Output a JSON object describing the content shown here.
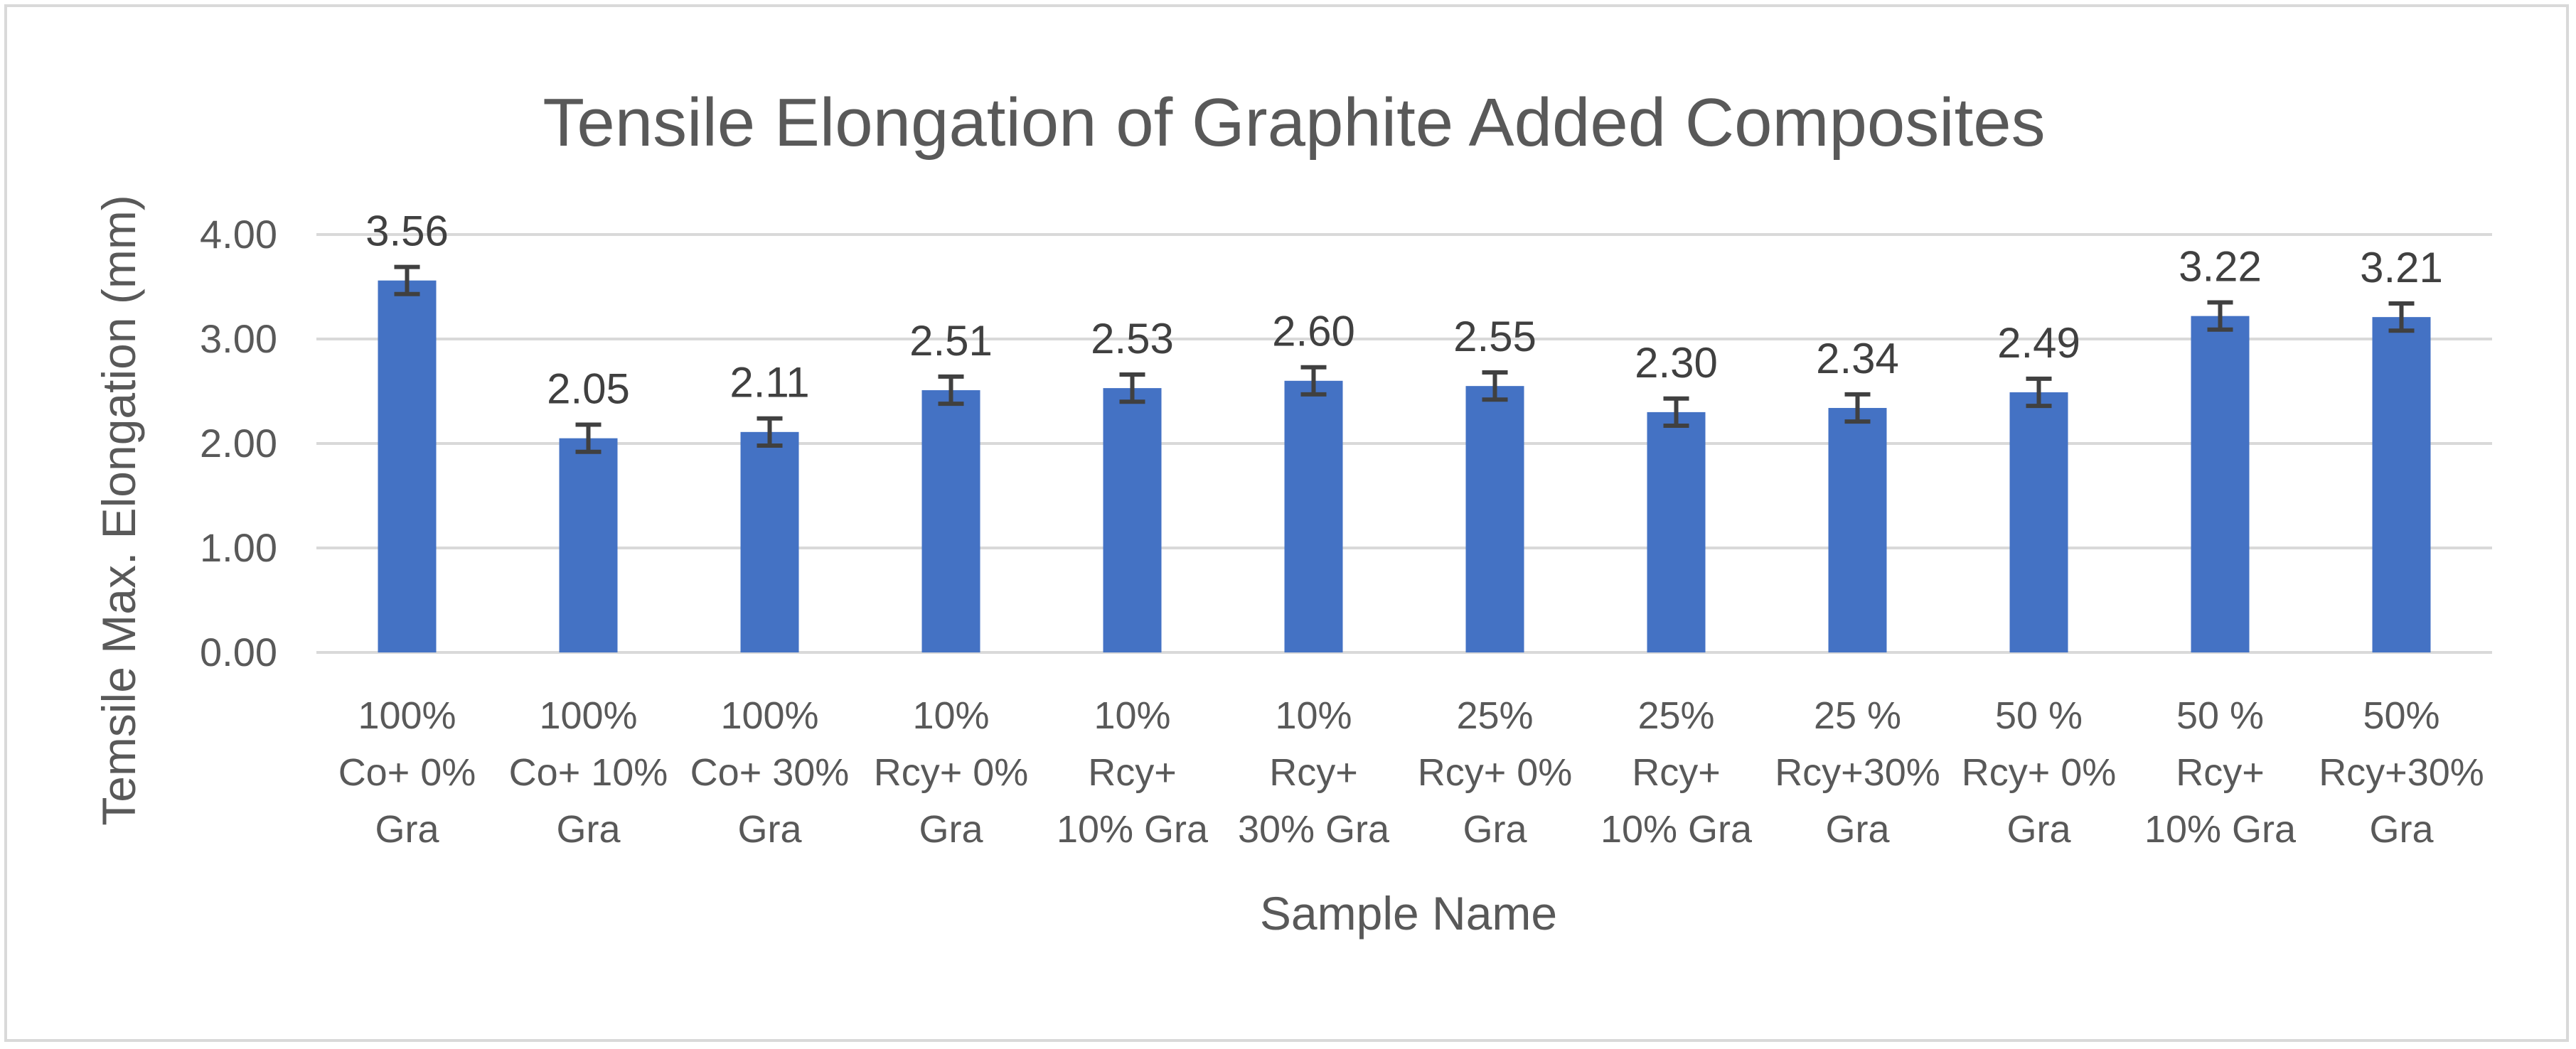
{
  "chart_data": {
    "type": "bar",
    "title": "Tensile Elongation of Graphite Added Composites",
    "xlabel": "Sample Name",
    "ylabel": "Temsile Max. Elongation (mm)",
    "ylim": [
      0,
      4
    ],
    "yticks": [
      "0.00",
      "1.00",
      "2.00",
      "3.00",
      "4.00"
    ],
    "grid": true,
    "legend": "none",
    "bar_color": "#4472c4",
    "error_bar_color": "#404040",
    "categories": [
      [
        "100%",
        "Co+ 0%",
        "Gra"
      ],
      [
        "100%",
        "Co+ 10%",
        "Gra"
      ],
      [
        "100%",
        "Co+ 30%",
        "Gra"
      ],
      [
        "10%",
        "Rcy+ 0%",
        "Gra"
      ],
      [
        "10%",
        "Rcy+",
        "10% Gra"
      ],
      [
        "10%",
        "Rcy+",
        "30% Gra"
      ],
      [
        "25%",
        "Rcy+ 0%",
        "Gra"
      ],
      [
        "25%",
        "Rcy+",
        "10% Gra"
      ],
      [
        "25 %",
        "Rcy+30%",
        "Gra"
      ],
      [
        "50 %",
        "Rcy+ 0%",
        "Gra"
      ],
      [
        "50 %",
        "Rcy+",
        "10% Gra"
      ],
      [
        "50%",
        "Rcy+30%",
        "Gra"
      ]
    ],
    "values": [
      3.56,
      2.05,
      2.11,
      2.51,
      2.53,
      2.6,
      2.55,
      2.3,
      2.34,
      2.49,
      3.22,
      3.21
    ],
    "data_labels": [
      "3.56",
      "2.05",
      "2.11",
      "2.51",
      "2.53",
      "2.60",
      "2.55",
      "2.30",
      "2.34",
      "2.49",
      "3.22",
      "3.21"
    ],
    "error": [
      0.13,
      0.13,
      0.13,
      0.13,
      0.13,
      0.13,
      0.13,
      0.13,
      0.13,
      0.13,
      0.13,
      0.13
    ]
  }
}
